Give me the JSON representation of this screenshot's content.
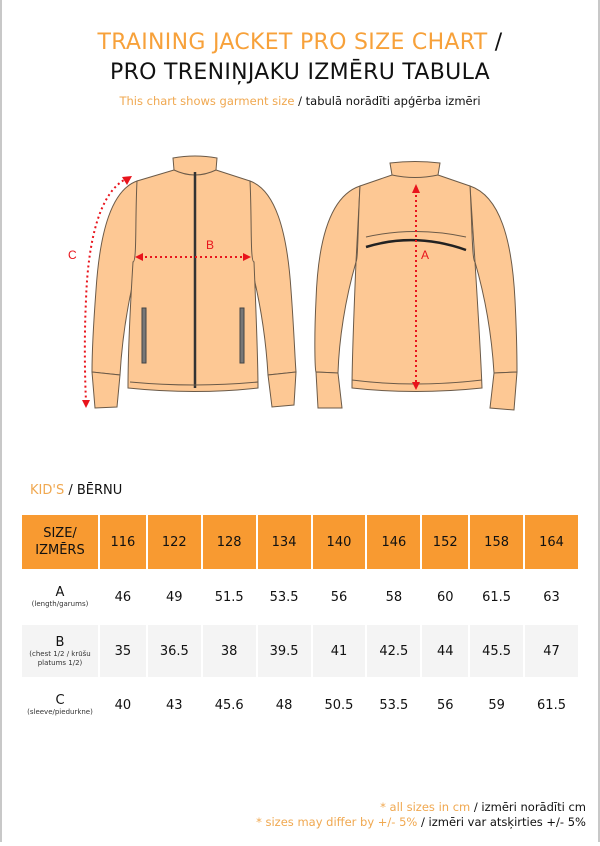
{
  "title": {
    "line1_en": "TRAINING JACKET PRO SIZE CHART",
    "line1_sep": " /",
    "line2_lv": "PRO TRENIŅJAKU IZMĒRU TABULA"
  },
  "subtitle": {
    "en": "This chart shows garment size",
    "lv": " / tabulā norādīti apģērba izmēri"
  },
  "diagram": {
    "labels": {
      "a": "A",
      "b": "B",
      "c": "C"
    },
    "colors": {
      "fabric": "#fdc894",
      "measure": "#e8141c",
      "outline": "#6b5a48"
    }
  },
  "section": {
    "en": "KID'S",
    "lv": " / BĒRNU"
  },
  "table": {
    "header_label_1": "SIZE/",
    "header_label_2": "IZMĒRS",
    "sizes": [
      "116",
      "122",
      "128",
      "134",
      "140",
      "146",
      "152",
      "158",
      "164"
    ],
    "rows": [
      {
        "code": "A",
        "note": "(length/garums)",
        "values": [
          "46",
          "49",
          "51.5",
          "53.5",
          "56",
          "58",
          "60",
          "61.5",
          "63"
        ]
      },
      {
        "code": "B",
        "note": "(chest 1/2 / krūšu platums 1/2)",
        "values": [
          "35",
          "36.5",
          "38",
          "39.5",
          "41",
          "42.5",
          "44",
          "45.5",
          "47"
        ]
      },
      {
        "code": "C",
        "note": "(sleeve/piedurkne)",
        "values": [
          "40",
          "43",
          "45.6",
          "48",
          "50.5",
          "53.5",
          "56",
          "59",
          "61.5"
        ]
      }
    ],
    "colors": {
      "header": "#f89a31",
      "accent": "#f7a13a"
    }
  },
  "footer": {
    "line1_en": "* all sizes in cm",
    "line1_lv": " / izmēri norādīti cm",
    "line2_en": "* sizes may differ by +/- 5%",
    "line2_lv": " / izmēri var atsķirties +/- 5%"
  }
}
